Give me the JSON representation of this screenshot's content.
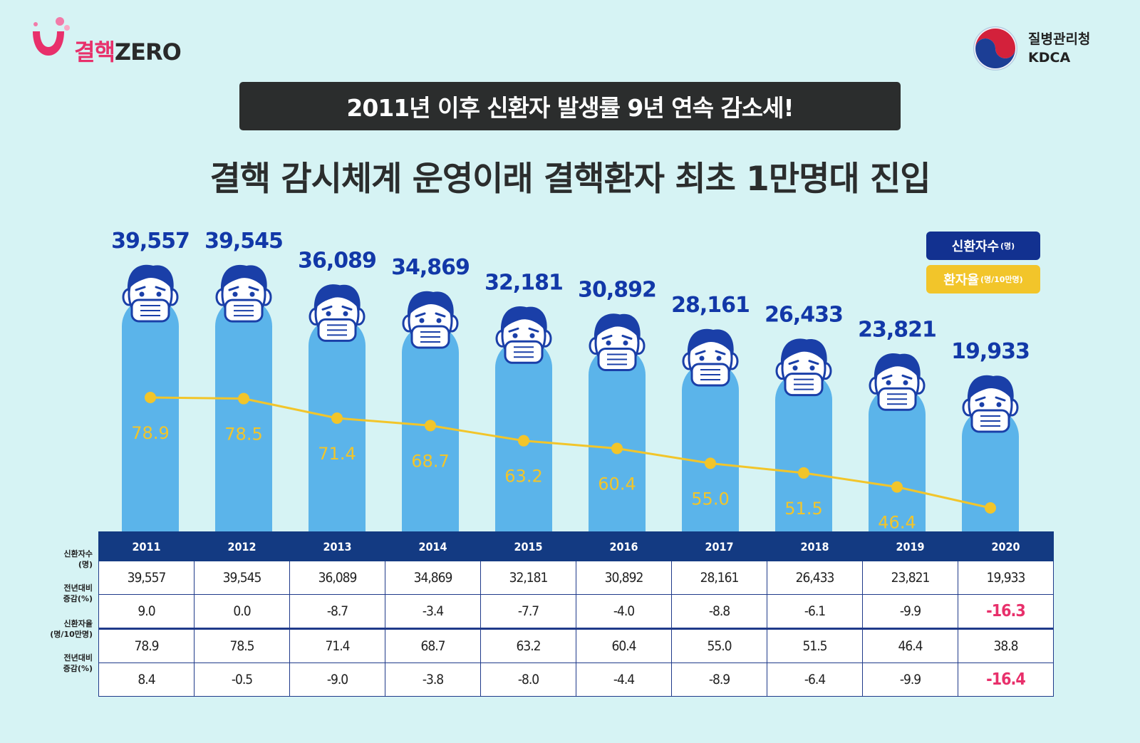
{
  "logo_left": {
    "text": "결핵",
    "zero": "ZERO"
  },
  "logo_right": {
    "name": "질병관리청",
    "abbr": "KDCA"
  },
  "banner": "2011년 이후 신환자 발생률 9년 연속 감소세!",
  "headline": "결핵 감시체계 운영이래 결핵환자 최초 1만명대 진입",
  "legend": {
    "count_label": "신환자수",
    "count_unit": "(명)",
    "rate_label": "환자율",
    "rate_unit": "(명/10만명)"
  },
  "colors": {
    "bar": "#5bb4ea",
    "line": "#f2c52a",
    "count_text": "#1238a8",
    "table_header": "#133a82",
    "highlight": "#e8306b",
    "face_outline": "#1a3fa8"
  },
  "chart_data": {
    "type": "bar",
    "categories": [
      "2011",
      "2012",
      "2013",
      "2014",
      "2015",
      "2016",
      "2017",
      "2018",
      "2019",
      "2020"
    ],
    "series": [
      {
        "name": "신환자수(명)",
        "values": [
          39557,
          39545,
          36089,
          34869,
          32181,
          30892,
          28161,
          26433,
          23821,
          19933
        ],
        "labels": [
          "39,557",
          "39,545",
          "36,089",
          "34,869",
          "32,181",
          "30,892",
          "28,161",
          "26,433",
          "23,821",
          "19,933"
        ]
      },
      {
        "name": "환자율(명/10만명)",
        "type": "line",
        "values": [
          78.9,
          78.5,
          71.4,
          68.7,
          63.2,
          60.4,
          55.0,
          51.5,
          46.4,
          38.8
        ],
        "labels": [
          "78.9",
          "78.5",
          "71.4",
          "68.7",
          "63.2",
          "60.4",
          "55.0",
          "51.5",
          "46.4",
          "38.8"
        ]
      }
    ]
  },
  "table": {
    "row_labels": [
      [
        "신환자수",
        "(명)"
      ],
      [
        "전년대비",
        "증감(%)"
      ],
      [
        "신환자율",
        "(명/10만명)"
      ],
      [
        "전년대비",
        "증감(%)"
      ]
    ],
    "rows": [
      [
        "39,557",
        "39,545",
        "36,089",
        "34,869",
        "32,181",
        "30,892",
        "28,161",
        "26,433",
        "23,821",
        "19,933"
      ],
      [
        "9.0",
        "0.0",
        "-8.7",
        "-3.4",
        "-7.7",
        "-4.0",
        "-8.8",
        "-6.1",
        "-9.9",
        "-16.3"
      ],
      [
        "78.9",
        "78.5",
        "71.4",
        "68.7",
        "63.2",
        "60.4",
        "55.0",
        "51.5",
        "46.4",
        "38.8"
      ],
      [
        "8.4",
        "-0.5",
        "-9.0",
        "-3.8",
        "-8.0",
        "-4.4",
        "-8.9",
        "-6.4",
        "-9.9",
        "-16.4"
      ]
    ],
    "highlight_last_in_rows": [
      1,
      3
    ]
  }
}
